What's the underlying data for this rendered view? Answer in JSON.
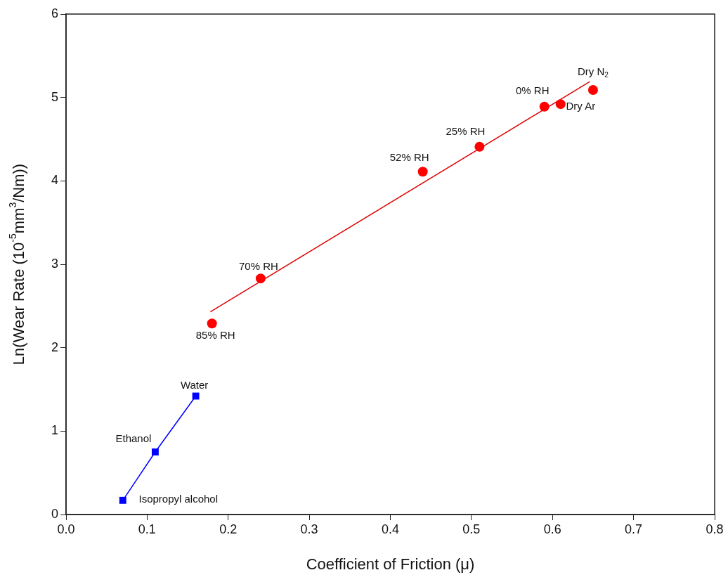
{
  "chart_data": {
    "type": "scatter",
    "xlabel": "Coefficient of Friction (μ)",
    "ylabel": "Ln(Wear Rate (10$^{-5}$mm$^{3}$/Nm))",
    "series": [
      {
        "type": "scatter",
        "color": "#ff0000",
        "marker": "circle",
        "x": [
          0.18,
          0.24,
          0.44,
          0.51,
          0.59,
          0.61,
          0.65
        ],
        "values": [
          2.29,
          2.83,
          4.11,
          4.41,
          4.89,
          4.92,
          5.09
        ]
      },
      {
        "type": "line",
        "color": "#e00000",
        "marker": "none",
        "x": [
          0.178,
          0.646
        ],
        "values": [
          2.43,
          5.19
        ]
      },
      {
        "type": "line",
        "color": "#0000ff",
        "marker": "square",
        "x": [
          0.07,
          0.11,
          0.16
        ],
        "values": [
          0.17,
          0.75,
          1.42
        ]
      }
    ],
    "annotations": [
      {
        "text": "Dry N$_{2}$",
        "x": 0.65,
        "y": 5.09
      },
      {
        "text": "0% RH",
        "x": 0.59,
        "y": 4.89
      },
      {
        "text": "Dry Ar",
        "x": 0.61,
        "y": 4.92
      },
      {
        "text": "25% RH",
        "x": 0.51,
        "y": 4.41
      },
      {
        "text": "52% RH",
        "x": 0.44,
        "y": 4.11
      },
      {
        "text": "70% RH",
        "x": 0.24,
        "y": 2.83
      },
      {
        "text": "85% RH",
        "x": 0.18,
        "y": 2.29
      },
      {
        "text": "Water",
        "x": 0.16,
        "y": 1.42
      },
      {
        "text": "Ethanol",
        "x": 0.11,
        "y": 0.75
      },
      {
        "text": "Isopropyl alcohol",
        "x": 0.07,
        "y": 0.17
      }
    ],
    "xlim": [
      0,
      0.8
    ],
    "xticks": [
      {
        "value": 0,
        "label": "0.0"
      },
      {
        "value": 0.1,
        "label": "0.1"
      },
      {
        "value": 0.2,
        "label": "0.2"
      },
      {
        "value": 0.3,
        "label": "0.3"
      },
      {
        "value": 0.4,
        "label": "0.4"
      },
      {
        "value": 0.5,
        "label": "0.5"
      },
      {
        "value": 0.6,
        "label": "0.6"
      },
      {
        "value": 0.7,
        "label": "0.7"
      },
      {
        "value": 0.8,
        "label": "0.8"
      }
    ],
    "ylim": [
      0,
      6
    ],
    "yticks": [
      0,
      1,
      2,
      3,
      4,
      5,
      6
    ],
    "grid": false,
    "legend": false
  }
}
